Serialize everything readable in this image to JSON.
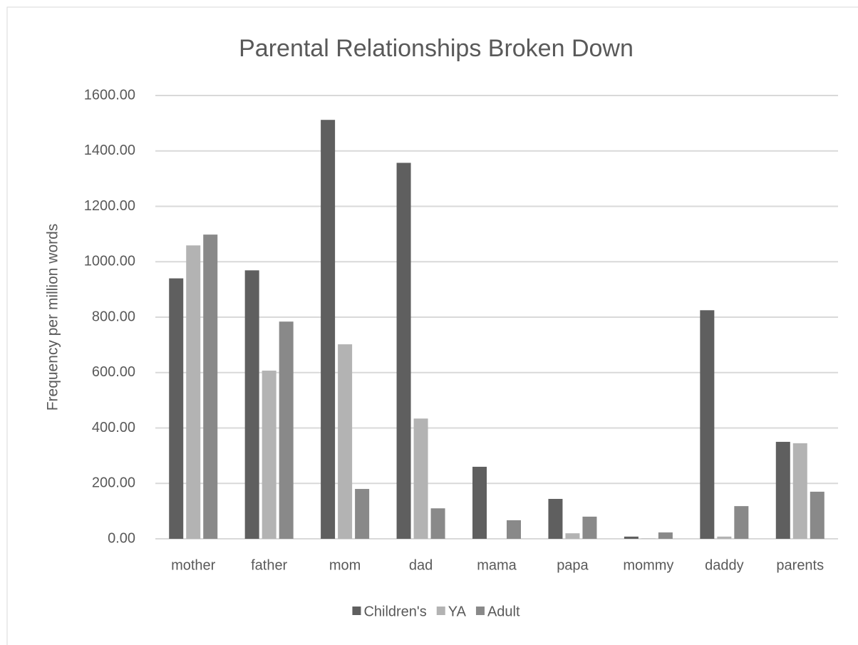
{
  "chart_data": {
    "type": "bar",
    "title": "Parental Relationships Broken Down",
    "y_label": "Frequency per million words",
    "categories": [
      "mother",
      "father",
      "mom",
      "dad",
      "mama",
      "papa",
      "mommy",
      "daddy",
      "parents"
    ],
    "series": [
      {
        "name": "Children's",
        "color": "#5f5f5f",
        "values": [
          940,
          969,
          1512,
          1357,
          260,
          144,
          8,
          825,
          350
        ]
      },
      {
        "name": "YA",
        "color": "#b3b3b3",
        "values": [
          1059,
          607,
          702,
          434,
          0,
          20,
          1,
          8,
          345
        ]
      },
      {
        "name": "Adult",
        "color": "#898989",
        "values": [
          1098,
          784,
          180,
          110,
          67,
          80,
          23,
          118,
          170
        ]
      }
    ],
    "ylim": [
      0,
      1600
    ],
    "yticks": [
      {
        "value": 0,
        "label": "0.00"
      },
      {
        "value": 200,
        "label": "200.00"
      },
      {
        "value": 400,
        "label": "400.00"
      },
      {
        "value": 600,
        "label": "600.00"
      },
      {
        "value": 800,
        "label": "800.00"
      },
      {
        "value": 1000,
        "label": "1000.00"
      },
      {
        "value": 1200,
        "label": "1200.00"
      },
      {
        "value": 1400,
        "label": "1400.00"
      },
      {
        "value": 1600,
        "label": "1600.00"
      }
    ],
    "grid": true,
    "legend": "bottom"
  }
}
